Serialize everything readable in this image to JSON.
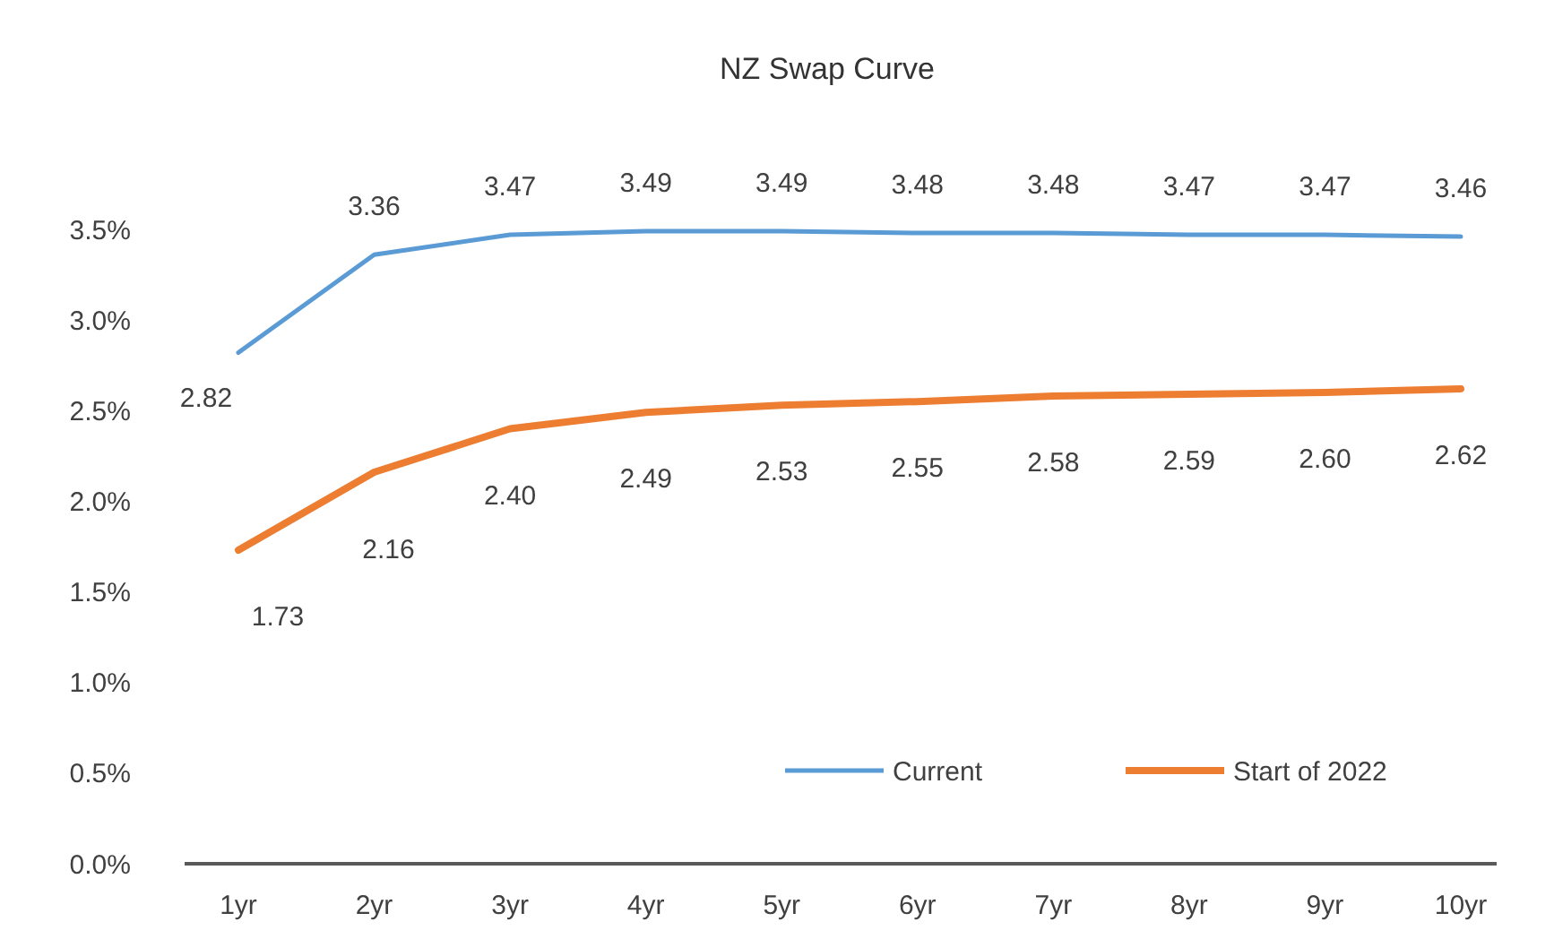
{
  "chart_data": {
    "type": "line",
    "title": "NZ Swap Curve",
    "categories": [
      "1yr",
      "2yr",
      "3yr",
      "4yr",
      "5yr",
      "6yr",
      "7yr",
      "8yr",
      "9yr",
      "10yr"
    ],
    "series": [
      {
        "name": "Current",
        "color": "#5b9bd5",
        "values": [
          2.82,
          3.36,
          3.47,
          3.49,
          3.49,
          3.48,
          3.48,
          3.47,
          3.47,
          3.46
        ],
        "value_labels": [
          "2.82",
          "3.36",
          "3.47",
          "3.49",
          "3.49",
          "3.48",
          "3.48",
          "3.47",
          "3.47",
          "3.46"
        ]
      },
      {
        "name": "Start of 2022",
        "color": "#ed7d31",
        "values": [
          1.73,
          2.16,
          2.4,
          2.49,
          2.53,
          2.55,
          2.58,
          2.59,
          2.6,
          2.62
        ],
        "value_labels": [
          "1.73",
          "2.16",
          "2.40",
          "2.49",
          "2.53",
          "2.55",
          "2.58",
          "2.59",
          "2.60",
          "2.62"
        ]
      }
    ],
    "ylim": [
      0,
      3.5
    ],
    "yticks": [
      {
        "value": 0,
        "label": "0.0%"
      },
      {
        "value": 0.5,
        "label": "0.5%"
      },
      {
        "value": 1,
        "label": "1.0%"
      },
      {
        "value": 1.5,
        "label": "1.5%"
      },
      {
        "value": 2,
        "label": "2.0%"
      },
      {
        "value": 2.5,
        "label": "2.5%"
      },
      {
        "value": 3,
        "label": "3.0%"
      },
      {
        "value": 3.5,
        "label": "3.5%"
      }
    ],
    "grid": false,
    "legend": "bottom right",
    "marker": "none",
    "line_style": "solid"
  }
}
